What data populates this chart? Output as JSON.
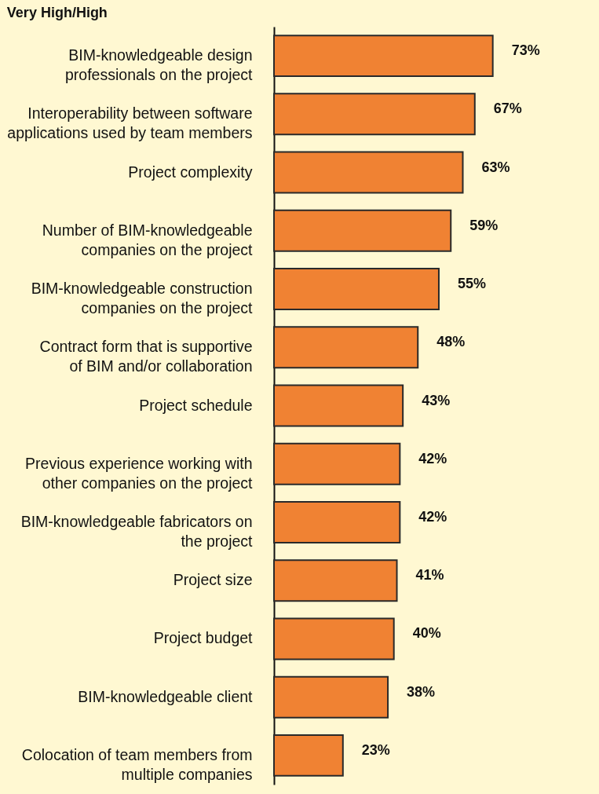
{
  "chart_data": {
    "type": "bar",
    "orientation": "horizontal",
    "title": "Very High/High",
    "categories": [
      "BIM-knowledgeable design professionals on the project",
      "Interoperability between software applications used by team members",
      "Project complexity",
      "Number of BIM-knowledgeable companies on the project",
      "BIM-knowledgeable construction companies on the project",
      "Contract form that is supportive of BIM and/or collaboration",
      "Project schedule",
      "Previous experience working with other companies on the project",
      "BIM-knowledgeable fabricators on the project",
      "Project size",
      "Project budget",
      "BIM-knowledgeable client",
      "Colocation of team members from multiple companies"
    ],
    "values": [
      73,
      67,
      63,
      59,
      55,
      48,
      43,
      42,
      42,
      41,
      40,
      38,
      23
    ],
    "value_labels": [
      "73%",
      "67%",
      "63%",
      "59%",
      "55%",
      "48%",
      "43%",
      "42%",
      "42%",
      "41%",
      "40%",
      "38%",
      "23%"
    ],
    "color": "#f08233"
  }
}
